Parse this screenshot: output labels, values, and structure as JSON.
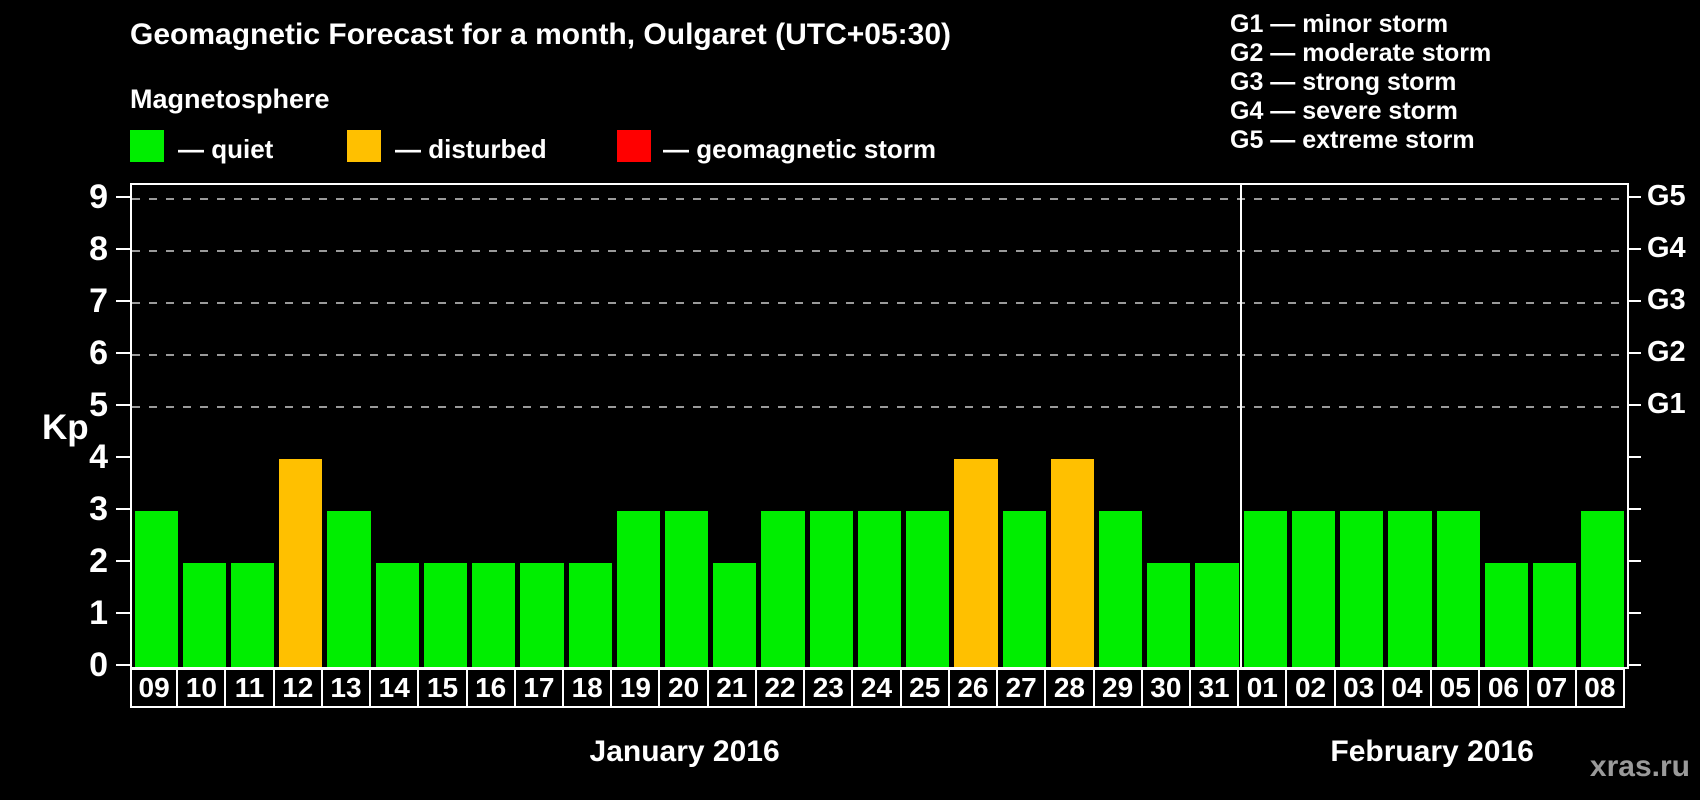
{
  "title": "Geomagnetic Forecast for a month, Oulgaret (UTC+05:30)",
  "magnetosphere": {
    "heading": "Magnetosphere",
    "items": [
      {
        "name": "quiet",
        "label": "— quiet",
        "color": "#00ee00"
      },
      {
        "name": "disturbed",
        "label": "— disturbed",
        "color": "#ffc000"
      },
      {
        "name": "storm",
        "label": "— geomagnetic storm",
        "color": "#ff0000"
      }
    ]
  },
  "storm_scale": [
    "G1 — minor storm",
    "G2 — moderate storm",
    "G3 — strong storm",
    "G4 — severe storm",
    "G5 — extreme storm"
  ],
  "watermark": "xras.ru",
  "chart_data": {
    "type": "bar",
    "title": "Geomagnetic Forecast for a month, Oulgaret (UTC+05:30)",
    "xlabel": "",
    "ylabel": "Kp",
    "ylim": [
      0,
      9.3
    ],
    "yticks": [
      0,
      1,
      2,
      3,
      4,
      5,
      6,
      7,
      8,
      9
    ],
    "gridlines_at": [
      5,
      6,
      7,
      8,
      9
    ],
    "grid": "dashed horizontal at G-storm levels only",
    "legend_position": "top",
    "right_axis_labels": [
      {
        "value": 5,
        "label": "G1"
      },
      {
        "value": 6,
        "label": "G2"
      },
      {
        "value": 7,
        "label": "G3"
      },
      {
        "value": 8,
        "label": "G4"
      },
      {
        "value": 9,
        "label": "G5"
      }
    ],
    "months": [
      {
        "label": "January 2016",
        "days": 23
      },
      {
        "label": "February 2016",
        "days": 8
      }
    ],
    "categories": [
      "09",
      "10",
      "11",
      "12",
      "13",
      "14",
      "15",
      "16",
      "17",
      "18",
      "19",
      "20",
      "21",
      "22",
      "23",
      "24",
      "25",
      "26",
      "27",
      "28",
      "29",
      "30",
      "31",
      "01",
      "02",
      "03",
      "04",
      "05",
      "06",
      "07",
      "08"
    ],
    "values": [
      3,
      2,
      2,
      4,
      3,
      2,
      2,
      2,
      2,
      2,
      3,
      3,
      2,
      3,
      3,
      3,
      3,
      4,
      3,
      4,
      3,
      2,
      2,
      3,
      3,
      3,
      3,
      3,
      2,
      2,
      3
    ],
    "status": [
      "quiet",
      "quiet",
      "quiet",
      "disturbed",
      "quiet",
      "quiet",
      "quiet",
      "quiet",
      "quiet",
      "quiet",
      "quiet",
      "quiet",
      "quiet",
      "quiet",
      "quiet",
      "quiet",
      "quiet",
      "disturbed",
      "quiet",
      "disturbed",
      "quiet",
      "quiet",
      "quiet",
      "quiet",
      "quiet",
      "quiet",
      "quiet",
      "quiet",
      "quiet",
      "quiet",
      "quiet"
    ],
    "colors": {
      "quiet": "#00ee00",
      "disturbed": "#ffc000",
      "storm": "#ff0000"
    }
  }
}
